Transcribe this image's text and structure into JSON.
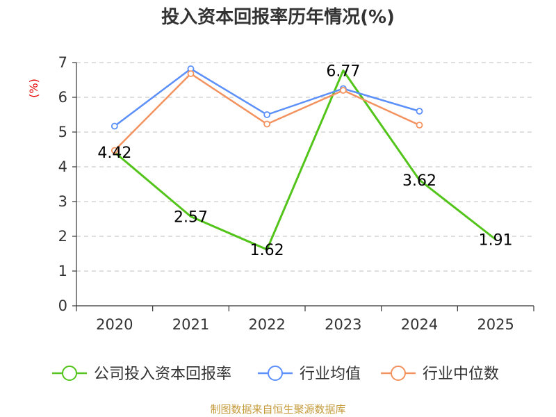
{
  "chart_data": {
    "type": "line",
    "title": "投入资本回报率历年情况(%)",
    "ylabel": "(%)",
    "xlabel": "",
    "categories": [
      "2020",
      "2021",
      "2022",
      "2023",
      "2024",
      "2025"
    ],
    "ylim": [
      0,
      7
    ],
    "yticks": [
      0,
      1,
      2,
      3,
      4,
      5,
      6,
      7
    ],
    "grid": true,
    "legend_position": "bottom",
    "series": [
      {
        "name": "公司投入资本回报率",
        "color": "#52c41a",
        "values": [
          4.42,
          2.57,
          1.62,
          6.77,
          3.62,
          1.91
        ],
        "labels": [
          "4.42",
          "2.57",
          "1.62",
          "6.77",
          "3.62",
          "1.91"
        ]
      },
      {
        "name": "行业均值",
        "color": "#5b8ff9",
        "values": [
          5.17,
          6.82,
          5.5,
          6.25,
          5.6,
          null
        ]
      },
      {
        "name": "行业中位数",
        "color": "#f4925f",
        "values": [
          4.47,
          6.68,
          5.23,
          6.2,
          5.2,
          null
        ]
      }
    ],
    "source": "制图数据来自恒生聚源数据库"
  }
}
